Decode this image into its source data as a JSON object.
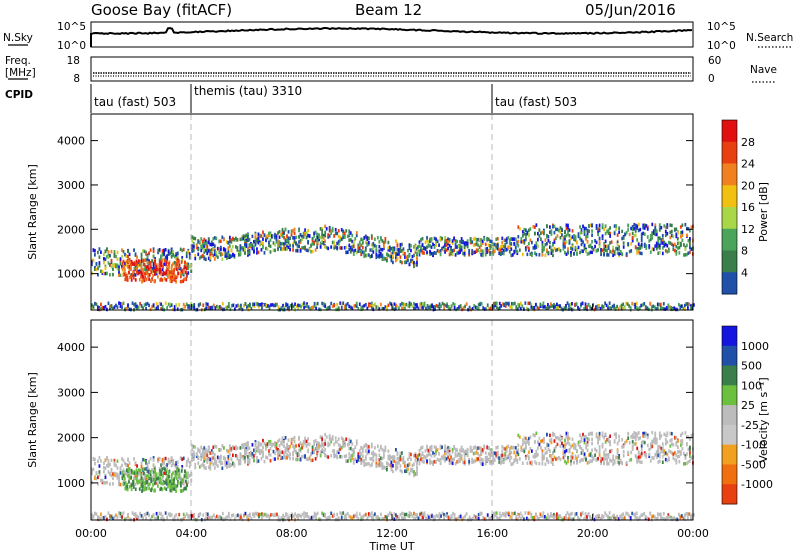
{
  "header": {
    "title": "Goose Bay (fitACF)",
    "beam": "Beam 12",
    "date": "05/Jun/2016"
  },
  "noise_panel": {
    "left_label": "N.Sky",
    "right_label": "N.Search",
    "left_ticks": [
      "10^5",
      "10^0"
    ],
    "right_ticks": [
      "10^5",
      "10^0"
    ]
  },
  "freq_panel": {
    "left_label_1": "Freq.",
    "left_label_2": "[MHz]",
    "right_label": "Nave",
    "left_ticks": [
      "18",
      "8"
    ],
    "right_ticks": [
      "60",
      "0"
    ]
  },
  "cpid": {
    "label": "CPID",
    "segments": [
      {
        "name": "tau (fast) 503",
        "start": 0
      },
      {
        "name": "themis (tau) 3310",
        "start": 4
      },
      {
        "name": "tau (fast) 503",
        "start": 16
      }
    ]
  },
  "colors": {
    "power": [
      "#1515e0",
      "#2050a8",
      "#3a7f4a",
      "#4aa45a",
      "#a8d848",
      "#f2c010",
      "#f08020",
      "#e84010",
      "#e01010"
    ],
    "velocity": [
      "#1515e0",
      "#2050a8",
      "#3a7f4a",
      "#6cc040",
      "#bcbcbc",
      "#c8c8c8",
      "#f2a020",
      "#f07010",
      "#e84010",
      "#e01010"
    ],
    "ground_scatter": "#bebebe"
  },
  "chart_data": [
    {
      "type": "heatmap",
      "name": "power",
      "ylabel": "Slant Range [km]",
      "xlabel": "Time UT",
      "ylim": [
        180,
        4600
      ],
      "yticks": [
        1000,
        2000,
        3000,
        4000
      ],
      "xticks": [
        "00:00",
        "04:00",
        "08:00",
        "12:00",
        "16:00",
        "20:00",
        "00:00"
      ],
      "xlim_hours": [
        0,
        24
      ],
      "colorbar": {
        "label": "Power [dB]",
        "range": [
          0,
          32
        ],
        "ticks": [
          "4",
          "8",
          "12",
          "16",
          "20",
          "24",
          "28"
        ]
      }
    },
    {
      "type": "heatmap",
      "name": "velocity",
      "ylabel": "Slant Range [km]",
      "xlabel": "Time UT",
      "ylim": [
        180,
        4600
      ],
      "yticks": [
        1000,
        2000,
        3000,
        4000
      ],
      "xticks": [
        "00:00",
        "04:00",
        "08:00",
        "12:00",
        "16:00",
        "20:00",
        "00:00"
      ],
      "xlim_hours": [
        0,
        24
      ],
      "colorbar": {
        "label": "Velocity [m s⁻¹]",
        "ticks": [
          "1000",
          "500",
          "100",
          "25",
          "-25",
          "-100",
          "-500",
          "-1000"
        ]
      }
    }
  ],
  "xaxis": {
    "label": "Time UT"
  }
}
